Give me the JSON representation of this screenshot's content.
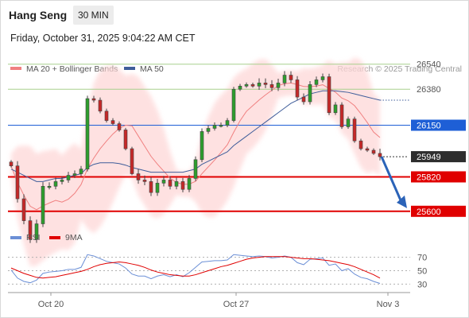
{
  "header": {
    "instrument": "Hang Seng",
    "timeframe": "30 MIN",
    "datetime": "Friday, October 31, 2025 9:04:22 AM CET"
  },
  "legend": {
    "ma20_bb": "MA 20 + Bollinger Bands",
    "ma50": "MA 50",
    "rsi": "RSI",
    "ma9": "9MA"
  },
  "credit": "Research © 2025 Trading Central",
  "colors": {
    "bullish": "#2d9e2d",
    "bearish": "#c62828",
    "bb_fill": "#fdd7d7",
    "ma20": "#f08080",
    "ma50": "#3f5d9a",
    "support": "#e00000",
    "resistance": "#a8d08d",
    "pivot": "#1e5fd6",
    "rsi_line": "#6b8fd6",
    "rsi_ma": "#e00000"
  },
  "chart_data": [
    {
      "type": "candlestick",
      "ylim": [
        25350,
        26620
      ],
      "x_ticks": [
        "Oct 20",
        "Oct 27",
        "Nov 3"
      ],
      "current_price": 25949,
      "levels": [
        {
          "value": 26540,
          "kind": "resistance",
          "label": "26540"
        },
        {
          "value": 26380,
          "kind": "resistance",
          "label": "26380"
        },
        {
          "value": 26150,
          "kind": "pivot",
          "label": "26150"
        },
        {
          "value": 25949,
          "kind": "last",
          "label": "25949"
        },
        {
          "value": 25820,
          "kind": "support",
          "label": "25820"
        },
        {
          "value": 25600,
          "kind": "support",
          "label": "25600"
        }
      ],
      "close_path": [
        25890,
        25680,
        25540,
        25420,
        25520,
        25760,
        25760,
        25790,
        25800,
        25830,
        25840,
        25870,
        26320,
        26310,
        26240,
        26180,
        26160,
        26120,
        26000,
        25840,
        25800,
        25790,
        25720,
        25780,
        25800,
        25760,
        25790,
        25740,
        25810,
        25930,
        26110,
        26130,
        26150,
        26150,
        26180,
        26380,
        26400,
        26410,
        26400,
        26420,
        26410,
        26390,
        26420,
        26470,
        26440,
        26330,
        26300,
        26410,
        26440,
        26460,
        26230,
        26280,
        26140,
        26190,
        26050,
        26000,
        25990,
        25970,
        25949
      ],
      "forecast": [
        25949,
        25620
      ],
      "ma50": [
        25870,
        25850,
        25830,
        25810,
        25790,
        25790,
        25800,
        25810,
        25810,
        25820,
        25830,
        25840,
        25880,
        25900,
        25910,
        25910,
        25910,
        25905,
        25895,
        25880,
        25870,
        25860,
        25850,
        25850,
        25850,
        25850,
        25850,
        25850,
        25860,
        25870,
        25900,
        25920,
        25940,
        25960,
        25980,
        26020,
        26050,
        26080,
        26110,
        26140,
        26170,
        26200,
        26230,
        26260,
        26290,
        26310,
        26330,
        26350,
        26360,
        26370,
        26370,
        26370,
        26365,
        26360,
        26350,
        26340,
        26330,
        26320,
        26310
      ]
    },
    {
      "type": "line",
      "name": "RSI",
      "yticks": [
        70,
        50,
        30
      ],
      "ylim": [
        15,
        85
      ],
      "values": [
        51,
        39,
        34,
        32,
        36,
        46,
        48,
        49,
        50,
        52,
        52,
        55,
        74,
        72,
        68,
        64,
        62,
        60,
        54,
        45,
        42,
        42,
        38,
        42,
        44,
        41,
        44,
        41,
        47,
        55,
        63,
        64,
        65,
        65,
        66,
        74,
        73,
        72,
        71,
        72,
        71,
        69,
        70,
        72,
        70,
        62,
        59,
        67,
        68,
        69,
        58,
        60,
        50,
        53,
        45,
        40,
        38,
        34,
        31
      ],
      "ma9": [
        54,
        50,
        46,
        43,
        40,
        39,
        40,
        41,
        43,
        45,
        47,
        49,
        52,
        56,
        59,
        61,
        62,
        63,
        62,
        60,
        58,
        55,
        51,
        48,
        46,
        44,
        43,
        42,
        42,
        44,
        47,
        50,
        53,
        56,
        58,
        61,
        64,
        67,
        69,
        70,
        71,
        71,
        71,
        71,
        70,
        69,
        68,
        68,
        67,
        66,
        65,
        63,
        61,
        59,
        56,
        52,
        48,
        44,
        39
      ]
    }
  ]
}
